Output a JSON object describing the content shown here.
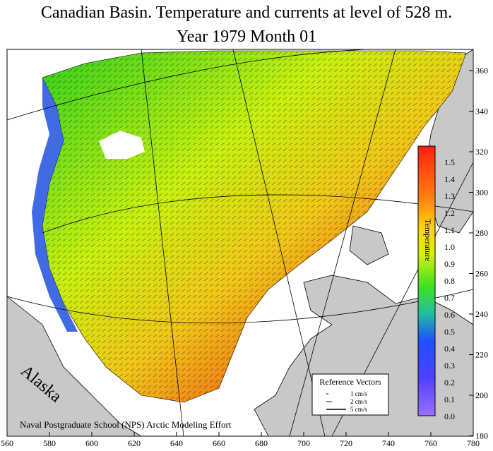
{
  "title_line1": "Canadian Basin. Temperature and currents at level of 528 m.",
  "title_line2": "Year 1979   Month  01",
  "x_ticks": [
    "560",
    "580",
    "600",
    "620",
    "640",
    "660",
    "680",
    "700",
    "720",
    "740",
    "760",
    "780"
  ],
  "y_ticks": [
    "360",
    "340",
    "320",
    "300",
    "280",
    "260",
    "240",
    "220",
    "200",
    "180"
  ],
  "colorbar": {
    "label": "Temperature",
    "ticks": [
      "1.5",
      "1.4",
      "1.3",
      "1.2",
      "1.1",
      "1.0",
      "0.9",
      "0.8",
      "0.7",
      "0.6",
      "0.5",
      "0.4",
      "0.3",
      "0.2",
      "0.1",
      "0.0"
    ]
  },
  "region_label": "Alaska",
  "credit": "Naval Postgraduate School (NPS) Arctic Modeling Effort",
  "reference_vectors": {
    "title": "Reference Vectors",
    "items": [
      "1 cm/s",
      "2 cm/s",
      "5 cm/s"
    ]
  },
  "colors": {
    "warm": "#f05a1e",
    "mid": "#f0e020",
    "cool": "#40c020",
    "cold": "#2040e0",
    "land": "#c8c8c8"
  }
}
